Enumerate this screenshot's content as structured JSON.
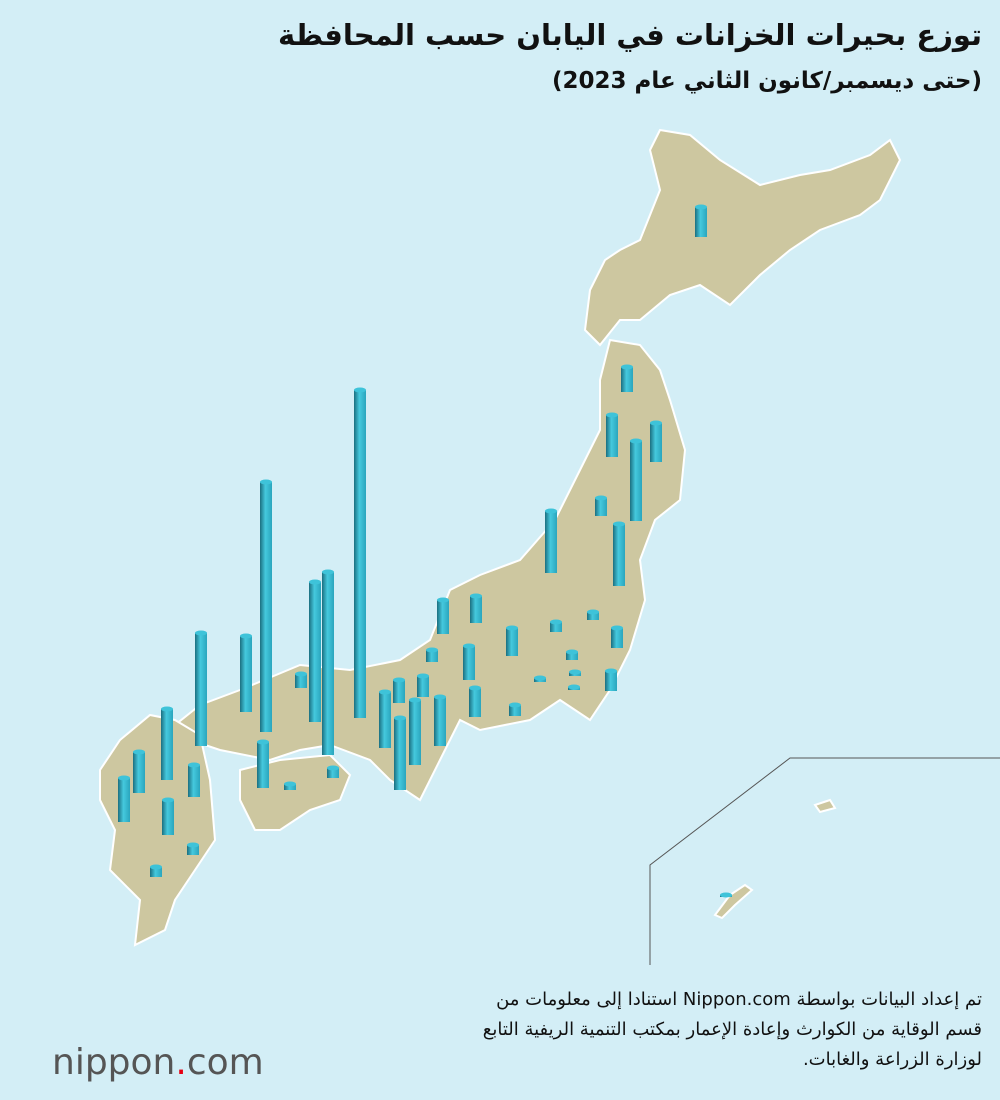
{
  "title": "توزع بحيرات الخزانات في اليابان حسب المحافظة",
  "subtitle": "(حتى ديسمبر/كانون الثاني عام 2023)",
  "note": [
    "تم إعداد البيانات بواسطة Nippon.com استنادا إلى معلومات من",
    "قسم الوقاية من الكوارث وإعادة الإعمار بمكتب التنمية الريفية التابع",
    "لوزارة الزراعة والغابات."
  ],
  "brand": {
    "name": "nippon",
    "dot": ".",
    "tld": "com"
  },
  "chart_data": {
    "type": "map_bars",
    "color": "#3ec3d9",
    "values": [
      30,
      25,
      42,
      39,
      80,
      18,
      62,
      62,
      27,
      34,
      12,
      34,
      28,
      10,
      8,
      20,
      8,
      3,
      4,
      4,
      20,
      11,
      29,
      49,
      21,
      23,
      56,
      72,
      65,
      14,
      328,
      250,
      76,
      113,
      46,
      183,
      10,
      6,
      140,
      71,
      41,
      44,
      32,
      35,
      10,
      10,
      2
    ]
  }
}
